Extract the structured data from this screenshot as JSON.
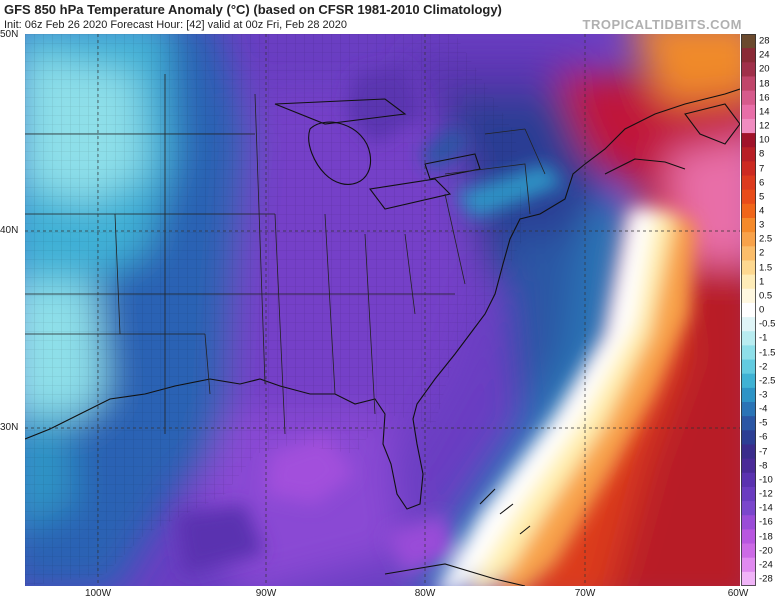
{
  "header": {
    "title": "GFS 850 hPa Temperature Anomaly (°C) (based on CFSR 1981-2010 Climatology)",
    "subtitle": "Init: 06z Feb 26 2020   Forecast Hour: [42]   valid at 00z Fri, Feb 28 2020",
    "brand": "TROPICALTIDBITS.COM"
  },
  "map": {
    "lat_labels": [
      "50N",
      "40N",
      "30N"
    ],
    "lon_labels": [
      "100W",
      "90W",
      "80W",
      "70W",
      "60W"
    ],
    "lat_range": [
      22,
      50
    ],
    "lon_range": [
      -105,
      -60
    ]
  },
  "colorbar": {
    "levels": [
      "28",
      "24",
      "20",
      "18",
      "16",
      "14",
      "12",
      "10",
      "8",
      "7",
      "6",
      "5",
      "4",
      "3",
      "2.5",
      "2",
      "1.5",
      "1",
      "0.5",
      "0",
      "-0.5",
      "-1",
      "-1.5",
      "-2",
      "-2.5",
      "-3",
      "-4",
      "-5",
      "-6",
      "-7",
      "-8",
      "-10",
      "-12",
      "-14",
      "-16",
      "-18",
      "-20",
      "-24",
      "-28"
    ],
    "colors": [
      "#6b4a2e",
      "#8a2a36",
      "#a0304a",
      "#c0456a",
      "#d65a8c",
      "#e86ea8",
      "#f08cc0",
      "#a0122a",
      "#b81f26",
      "#cc2a22",
      "#dc3a1e",
      "#e84c1a",
      "#f0661a",
      "#f58a2a",
      "#f8a24a",
      "#fbbd6a",
      "#fdd890",
      "#feecb8",
      "#fff8e0",
      "#ffffff",
      "#dff5f7",
      "#b8ecf0",
      "#8edfe9",
      "#62cbe0",
      "#3fb2d4",
      "#2d94c6",
      "#2a74b6",
      "#2a56a4",
      "#2c3e94",
      "#3a2c8c",
      "#4a2a98",
      "#5a32b0",
      "#6a3cc0",
      "#7a46cc",
      "#9a4cd8",
      "#b856e0",
      "#cc6ae6",
      "#e08af0",
      "#f0b4f8"
    ]
  }
}
